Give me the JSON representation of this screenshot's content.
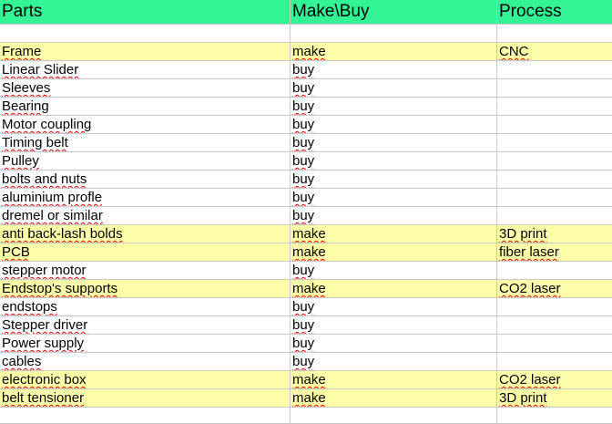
{
  "sheet": {
    "header": [
      "Parts",
      "Make\\Buy",
      "Process"
    ],
    "colors": {
      "header_bg": "#33f595",
      "highlight_bg": "#ffffaa",
      "grid": "#c8c8c8",
      "spellcheck": "#e00000"
    },
    "rows": [
      {
        "part": "",
        "make_buy": "",
        "process": "",
        "highlight": false
      },
      {
        "part": "Frame",
        "make_buy": "make",
        "process": "CNC",
        "highlight": true
      },
      {
        "part": "Linear Slider",
        "make_buy": "buy",
        "process": "",
        "highlight": false
      },
      {
        "part": "Sleeves",
        "make_buy": "buy",
        "process": "",
        "highlight": false
      },
      {
        "part": "Bearing",
        "make_buy": "buy",
        "process": "",
        "highlight": false
      },
      {
        "part": "Motor coupling",
        "make_buy": "buy",
        "process": "",
        "highlight": false
      },
      {
        "part": "Timing belt",
        "make_buy": "buy",
        "process": "",
        "highlight": false
      },
      {
        "part": "Pulley",
        "make_buy": "buy",
        "process": "",
        "highlight": false
      },
      {
        "part": "bolts and nuts",
        "make_buy": "buy",
        "process": "",
        "highlight": false
      },
      {
        "part": "aluminium profle",
        "make_buy": "buy",
        "process": "",
        "highlight": false
      },
      {
        "part": "dremel or similar",
        "make_buy": "buy",
        "process": "",
        "highlight": false
      },
      {
        "part": "anti back-lash bolds",
        "make_buy": "make",
        "process": "3D print",
        "highlight": true
      },
      {
        "part": "PCB",
        "make_buy": "make",
        "process": "fiber laser",
        "highlight": true
      },
      {
        "part": "stepper motor",
        "make_buy": "buy",
        "process": "",
        "highlight": false
      },
      {
        "part": "Endstop's supports",
        "make_buy": "make",
        "process": "CO2 laser",
        "highlight": true
      },
      {
        "part": "endstops",
        "make_buy": "buy",
        "process": "",
        "highlight": false
      },
      {
        "part": "Stepper driver",
        "make_buy": "buy",
        "process": "",
        "highlight": false
      },
      {
        "part": "Power supply",
        "make_buy": "buy",
        "process": "",
        "highlight": false
      },
      {
        "part": "cables",
        "make_buy": "buy",
        "process": "",
        "highlight": false
      },
      {
        "part": "electronic box",
        "make_buy": "make",
        "process": "CO2 laser",
        "highlight": true
      },
      {
        "part": "belt tensioner",
        "make_buy": "make",
        "process": "3D print",
        "highlight": true
      },
      {
        "part": "",
        "make_buy": "",
        "process": "",
        "highlight": false
      }
    ]
  }
}
